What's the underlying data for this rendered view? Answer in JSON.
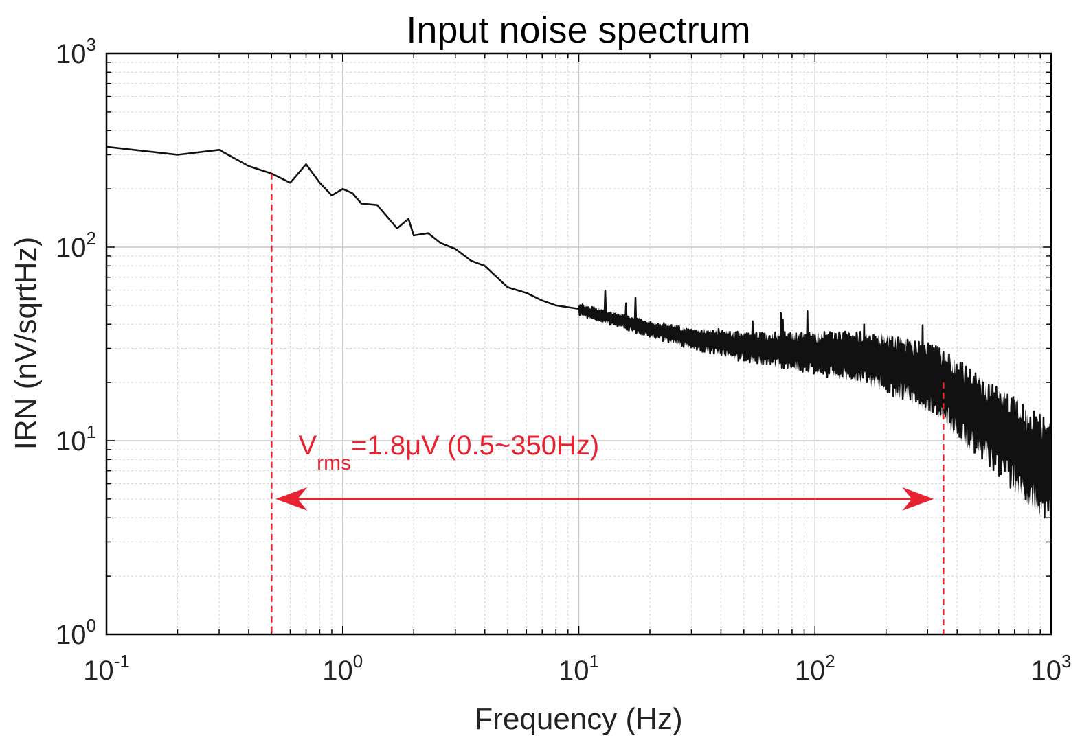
{
  "colors": {
    "series": "#111111",
    "annotation": "#e8232f",
    "grid_major": "#c8c8c8",
    "grid_minor": "#d6d6d6",
    "axis": "#000000"
  },
  "chart_data": {
    "type": "line",
    "title": "Input noise spectrum",
    "xlabel": "Frequency (Hz)",
    "ylabel": "IRN (nV/sqrtHz)",
    "xscale": "log",
    "yscale": "log",
    "xlim": [
      0.1,
      1000
    ],
    "ylim": [
      1,
      1000
    ],
    "grid": true,
    "x_ticks": [
      {
        "base": "10",
        "exp": "-1",
        "value": 0.1
      },
      {
        "base": "10",
        "exp": "0",
        "value": 1
      },
      {
        "base": "10",
        "exp": "1",
        "value": 10
      },
      {
        "base": "10",
        "exp": "2",
        "value": 100
      },
      {
        "base": "10",
        "exp": "3",
        "value": 1000
      }
    ],
    "y_ticks": [
      {
        "base": "10",
        "exp": "0",
        "value": 1
      },
      {
        "base": "10",
        "exp": "1",
        "value": 10
      },
      {
        "base": "10",
        "exp": "2",
        "value": 100
      },
      {
        "base": "10",
        "exp": "3",
        "value": 1000
      }
    ],
    "series": [
      {
        "name": "IRN",
        "x": [
          0.1,
          0.2,
          0.3,
          0.4,
          0.5,
          0.6,
          0.7,
          0.8,
          0.9,
          1.0,
          1.1,
          1.2,
          1.4,
          1.7,
          1.9,
          2.0,
          2.3,
          2.6,
          3.0,
          3.5,
          4.0,
          5.0,
          6.0,
          7.0,
          8.0,
          10,
          15,
          20,
          30,
          50,
          70,
          100,
          150,
          200,
          300,
          350,
          400,
          500,
          700,
          1000
        ],
        "y": [
          330,
          300,
          318,
          262,
          240,
          215,
          268,
          215,
          185,
          200,
          190,
          168,
          165,
          125,
          140,
          115,
          118,
          105,
          98,
          85,
          80,
          62,
          58,
          53,
          50,
          48,
          42,
          38,
          34,
          31,
          30,
          29,
          28,
          26,
          22,
          20,
          17,
          14,
          10,
          7
        ],
        "noise_band_start_hz": 10
      }
    ],
    "annotations": [
      {
        "kind": "vline",
        "x": 0.5,
        "y_top": 240,
        "style": "dashed"
      },
      {
        "kind": "vline",
        "x": 350,
        "y_top": 20,
        "style": "dashed"
      },
      {
        "kind": "double-arrow",
        "x_start": 0.5,
        "x_end": 350,
        "y": 5
      },
      {
        "kind": "text",
        "main": "V",
        "sub": "rms",
        "rest": "=1.8μV (0.5~350Hz)",
        "x": 0.65,
        "y": 8.5
      }
    ]
  }
}
